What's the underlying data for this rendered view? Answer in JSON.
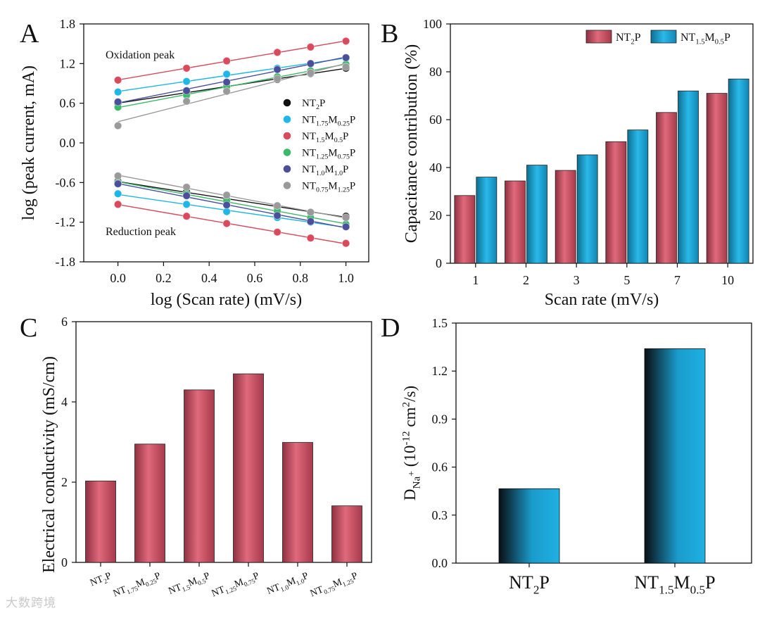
{
  "watermark": "大数跨境",
  "panels": [
    {
      "letter": "A"
    },
    {
      "letter": "B"
    },
    {
      "letter": "C"
    },
    {
      "letter": "D"
    }
  ],
  "chart_data": [
    {
      "id": "A",
      "type": "scatter",
      "xlabel": "log (Scan rate) (mV/s)",
      "ylabel": "log (peak current, mA)",
      "xlim": [
        -0.15,
        1.1
      ],
      "ylim": [
        -1.8,
        1.8
      ],
      "xticks": [
        "0.0",
        "0.2",
        "0.4",
        "0.6",
        "0.8",
        "1.0"
      ],
      "yticks": [
        "-1.8",
        "-1.2",
        "-0.6",
        "0.0",
        "0.6",
        "1.2",
        "1.8"
      ],
      "annotations": [
        "Oxidation peak",
        "Reduction peak"
      ],
      "x": [
        0.0,
        0.301,
        0.477,
        0.699,
        0.845,
        1.0
      ],
      "series": [
        {
          "name": "NT2P",
          "legend": [
            [
              "NT",
              ""
            ],
            [
              "2",
              "sub"
            ],
            [
              "P",
              ""
            ]
          ],
          "color": "#111111",
          "oxidation": [
            0.6,
            0.76,
            0.86,
            0.96,
            1.05,
            1.13
          ],
          "reduction": [
            -0.58,
            -0.74,
            -0.86,
            -0.97,
            -1.05,
            -1.11
          ]
        },
        {
          "name": "NT1.75M0.25P",
          "legend": [
            [
              "NT",
              ""
            ],
            [
              "1.75",
              "sub"
            ],
            [
              "M",
              ""
            ],
            [
              "0.25",
              "sub"
            ],
            [
              "P",
              ""
            ]
          ],
          "color": "#1fb6e8",
          "oxidation": [
            0.77,
            0.93,
            1.04,
            1.13,
            1.2,
            1.28
          ],
          "reduction": [
            -0.77,
            -0.93,
            -1.04,
            -1.13,
            -1.2,
            -1.27
          ]
        },
        {
          "name": "NT1.5M0.5P",
          "legend": [
            [
              "NT",
              ""
            ],
            [
              "1.5",
              "sub"
            ],
            [
              "M",
              ""
            ],
            [
              "0.5",
              "sub"
            ],
            [
              "P",
              ""
            ]
          ],
          "color": "#d84a5c",
          "oxidation": [
            0.95,
            1.13,
            1.24,
            1.37,
            1.45,
            1.54
          ],
          "reduction": [
            -0.93,
            -1.11,
            -1.22,
            -1.35,
            -1.44,
            -1.52
          ]
        },
        {
          "name": "NT1.25M0.75P",
          "legend": [
            [
              "NT",
              ""
            ],
            [
              "1.25",
              "sub"
            ],
            [
              "M",
              ""
            ],
            [
              "0.75",
              "sub"
            ],
            [
              "P",
              ""
            ]
          ],
          "color": "#3cb86a",
          "oxidation": [
            0.54,
            0.72,
            0.85,
            1.0,
            1.09,
            1.19
          ],
          "reduction": [
            -0.6,
            -0.77,
            -0.88,
            -1.03,
            -1.13,
            -1.23
          ]
        },
        {
          "name": "NT1.0M1.0P",
          "legend": [
            [
              "NT",
              ""
            ],
            [
              "1.0",
              "sub"
            ],
            [
              "M",
              ""
            ],
            [
              "1.0",
              "sub"
            ],
            [
              "P",
              ""
            ]
          ],
          "color": "#4a4f9a",
          "oxidation": [
            0.62,
            0.79,
            0.92,
            1.11,
            1.2,
            1.29
          ],
          "reduction": [
            -0.62,
            -0.8,
            -0.94,
            -1.1,
            -1.19,
            -1.27
          ]
        },
        {
          "name": "NT0.75M1.25P",
          "legend": [
            [
              "NT",
              ""
            ],
            [
              "0.75",
              "sub"
            ],
            [
              "M",
              ""
            ],
            [
              "1.25",
              "sub"
            ],
            [
              "P",
              ""
            ]
          ],
          "color": "#9a9a9a",
          "oxidation": [
            0.26,
            0.63,
            0.78,
            0.97,
            1.06,
            1.15
          ],
          "reduction": [
            -0.5,
            -0.67,
            -0.79,
            -0.95,
            -1.05,
            -1.13
          ]
        }
      ]
    },
    {
      "id": "B",
      "type": "bar",
      "xlabel": "Scan rate (mV/s)",
      "ylabel": "Capacitance contribution (%)",
      "ylim": [
        0,
        100
      ],
      "yticks": [
        "0",
        "20",
        "40",
        "60",
        "80",
        "100"
      ],
      "categories": [
        "1",
        "2",
        "3",
        "5",
        "7",
        "10"
      ],
      "series": [
        {
          "name": "NT2P",
          "legend": [
            [
              "NT",
              ""
            ],
            [
              "2",
              "sub"
            ],
            [
              "P",
              ""
            ]
          ],
          "color": "#d1576a",
          "values": [
            28.3,
            34.4,
            38.8,
            50.8,
            63.0,
            71.0
          ]
        },
        {
          "name": "NT1.5M0.5P",
          "legend": [
            [
              "NT",
              ""
            ],
            [
              "1.5",
              "sub"
            ],
            [
              "M",
              ""
            ],
            [
              "0.5",
              "sub"
            ],
            [
              "P",
              ""
            ]
          ],
          "color": "#1aa3cf",
          "values": [
            36.0,
            41.0,
            45.3,
            55.7,
            72.0,
            77.0
          ]
        }
      ]
    },
    {
      "id": "C",
      "type": "bar",
      "xlabel": "",
      "ylabel": "Electrical conductivity (mS/cm)",
      "ylim": [
        0,
        6
      ],
      "yticks": [
        "0",
        "2",
        "4",
        "6"
      ],
      "categories": [
        [
          [
            "NT",
            ""
          ],
          [
            "2",
            "sub"
          ],
          [
            "P",
            ""
          ]
        ],
        [
          [
            "NT",
            ""
          ],
          [
            "1.75",
            "sub"
          ],
          [
            "M",
            ""
          ],
          [
            "0.25",
            "sub"
          ],
          [
            "P",
            ""
          ]
        ],
        [
          [
            "NT",
            ""
          ],
          [
            "1.5",
            "sub"
          ],
          [
            "M",
            ""
          ],
          [
            "0.5",
            "sub"
          ],
          [
            "P",
            ""
          ]
        ],
        [
          [
            "NT",
            ""
          ],
          [
            "1.25",
            "sub"
          ],
          [
            "M",
            ""
          ],
          [
            "0.75",
            "sub"
          ],
          [
            "P",
            ""
          ]
        ],
        [
          [
            "NT",
            ""
          ],
          [
            "1.0",
            "sub"
          ],
          [
            "M",
            ""
          ],
          [
            "1.0",
            "sub"
          ],
          [
            "P",
            ""
          ]
        ],
        [
          [
            "NT",
            ""
          ],
          [
            "0.75",
            "sub"
          ],
          [
            "M",
            ""
          ],
          [
            "1.25",
            "sub"
          ],
          [
            "P",
            ""
          ]
        ]
      ],
      "values": [
        2.03,
        2.95,
        4.3,
        4.7,
        2.99,
        1.41
      ],
      "color": "#d1576a"
    },
    {
      "id": "D",
      "type": "bar",
      "xlabel": "",
      "ylabel": [
        [
          "D",
          ""
        ],
        [
          "Na",
          "sub"
        ],
        [
          "+",
          "subsup"
        ],
        [
          " (10",
          ""
        ],
        [
          "-12",
          "sup"
        ],
        [
          " cm",
          ""
        ],
        [
          "2",
          "sup"
        ],
        [
          "/s)",
          ""
        ]
      ],
      "ylim": [
        0,
        1.5
      ],
      "yticks": [
        "0.0",
        "0.3",
        "0.6",
        "0.9",
        "1.2",
        "1.5"
      ],
      "categories": [
        [
          [
            "NT",
            ""
          ],
          [
            "2",
            "sub"
          ],
          [
            "P",
            ""
          ]
        ],
        [
          [
            "NT",
            ""
          ],
          [
            "1.5",
            "sub"
          ],
          [
            "M",
            ""
          ],
          [
            "0.5",
            "sub"
          ],
          [
            "P",
            ""
          ]
        ]
      ],
      "values": [
        0.465,
        1.34
      ],
      "color": "#1aa3cf"
    }
  ]
}
